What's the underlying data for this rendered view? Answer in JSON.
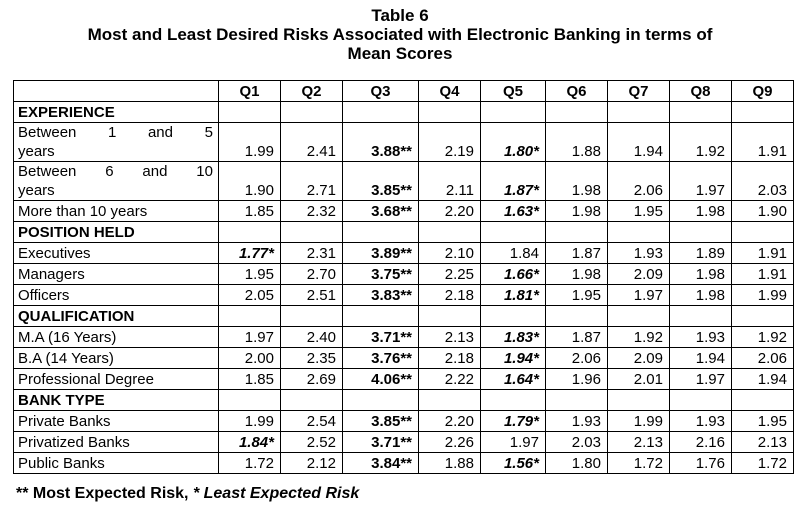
{
  "title": {
    "line1": "Table 6",
    "line2": "Most and Least Desired Risks Associated with Electronic Banking in terms of",
    "line3": "Mean Scores"
  },
  "columns": [
    "Q1",
    "Q2",
    "Q3",
    "Q4",
    "Q5",
    "Q6",
    "Q7",
    "Q8",
    "Q9"
  ],
  "groups": [
    {
      "name": "EXPERIENCE",
      "rows": [
        {
          "label_top": [
            "Between",
            "1",
            "and",
            "5"
          ],
          "label_bottom": "years",
          "cells": [
            "1.99",
            "2.41",
            "3.88**",
            "2.19",
            "1.80*",
            "1.88",
            "1.94",
            "1.92",
            "1.91"
          ],
          "styles": [
            "",
            "",
            "b",
            "",
            "bi",
            "",
            "",
            "",
            ""
          ]
        },
        {
          "label_top": [
            "Between",
            "6",
            "and",
            "10"
          ],
          "label_bottom": "years",
          "cells": [
            "1.90",
            "2.71",
            "3.85**",
            "2.11",
            "1.87*",
            "1.98",
            "2.06",
            "1.97",
            "2.03"
          ],
          "styles": [
            "",
            "",
            "b",
            "",
            "bi",
            "",
            "",
            "",
            ""
          ]
        },
        {
          "label": "More than 10 years",
          "cells": [
            "1.85",
            "2.32",
            "3.68**",
            "2.20",
            "1.63*",
            "1.98",
            "1.95",
            "1.98",
            "1.90"
          ],
          "styles": [
            "",
            "",
            "b",
            "",
            "bi",
            "",
            "",
            "",
            ""
          ]
        }
      ]
    },
    {
      "name": "POSITION HELD",
      "rows": [
        {
          "label": "Executives",
          "cells": [
            "1.77*",
            "2.31",
            "3.89**",
            "2.10",
            "1.84",
            "1.87",
            "1.93",
            "1.89",
            "1.91"
          ],
          "styles": [
            "bi",
            "",
            "b",
            "",
            "",
            "",
            "",
            "",
            ""
          ]
        },
        {
          "label": "Managers",
          "cells": [
            "1.95",
            "2.70",
            "3.75**",
            "2.25",
            "1.66*",
            "1.98",
            "2.09",
            "1.98",
            "1.91"
          ],
          "styles": [
            "",
            "",
            "b",
            "",
            "bi",
            "",
            "",
            "",
            ""
          ]
        },
        {
          "label": "Officers",
          "cells": [
            "2.05",
            "2.51",
            "3.83**",
            "2.18",
            "1.81*",
            "1.95",
            "1.97",
            "1.98",
            "1.99"
          ],
          "styles": [
            "",
            "",
            "b",
            "",
            "bi",
            "",
            "",
            "",
            ""
          ]
        }
      ]
    },
    {
      "name": "QUALIFICATION",
      "rows": [
        {
          "label": "M.A (16 Years)",
          "cells": [
            "1.97",
            "2.40",
            "3.71**",
            "2.13",
            "1.83*",
            "1.87",
            "1.92",
            "1.93",
            "1.92"
          ],
          "styles": [
            "",
            "",
            "b",
            "",
            "bi",
            "",
            "",
            "",
            ""
          ]
        },
        {
          "label": "B.A (14 Years)",
          "cells": [
            "2.00",
            "2.35",
            "3.76**",
            "2.18",
            "1.94*",
            "2.06",
            "2.09",
            "1.94",
            "2.06"
          ],
          "styles": [
            "",
            "",
            "b",
            "",
            "bi",
            "",
            "",
            "",
            ""
          ]
        },
        {
          "label": "Professional Degree",
          "cells": [
            "1.85",
            "2.69",
            "4.06**",
            "2.22",
            "1.64*",
            "1.96",
            "2.01",
            "1.97",
            "1.94"
          ],
          "styles": [
            "",
            "",
            "b",
            "",
            "bi",
            "",
            "",
            "",
            ""
          ]
        }
      ]
    },
    {
      "name": "BANK TYPE",
      "rows": [
        {
          "label": "Private Banks",
          "cells": [
            "1.99",
            "2.54",
            "3.85**",
            "2.20",
            "1.79*",
            "1.93",
            "1.99",
            "1.93",
            "1.95"
          ],
          "styles": [
            "",
            "",
            "b",
            "",
            "bi",
            "",
            "",
            "",
            ""
          ]
        },
        {
          "label": "Privatized Banks",
          "cells": [
            "1.84*",
            "2.52",
            "3.71**",
            "2.26",
            "1.97",
            "2.03",
            "2.13",
            "2.16",
            "2.13"
          ],
          "styles": [
            "bi",
            "",
            "b",
            "",
            "",
            "",
            "",
            "",
            ""
          ]
        },
        {
          "label": "Public Banks",
          "cells": [
            "1.72",
            "2.12",
            "3.84**",
            "1.88",
            "1.56*",
            "1.80",
            "1.72",
            "1.76",
            "1.72"
          ],
          "styles": [
            "",
            "",
            "b",
            "",
            "bi",
            "",
            "",
            "",
            ""
          ]
        }
      ]
    }
  ],
  "footnote": {
    "part1": "** Most Expected Risk, ",
    "part2": "* Least Expected Risk"
  }
}
